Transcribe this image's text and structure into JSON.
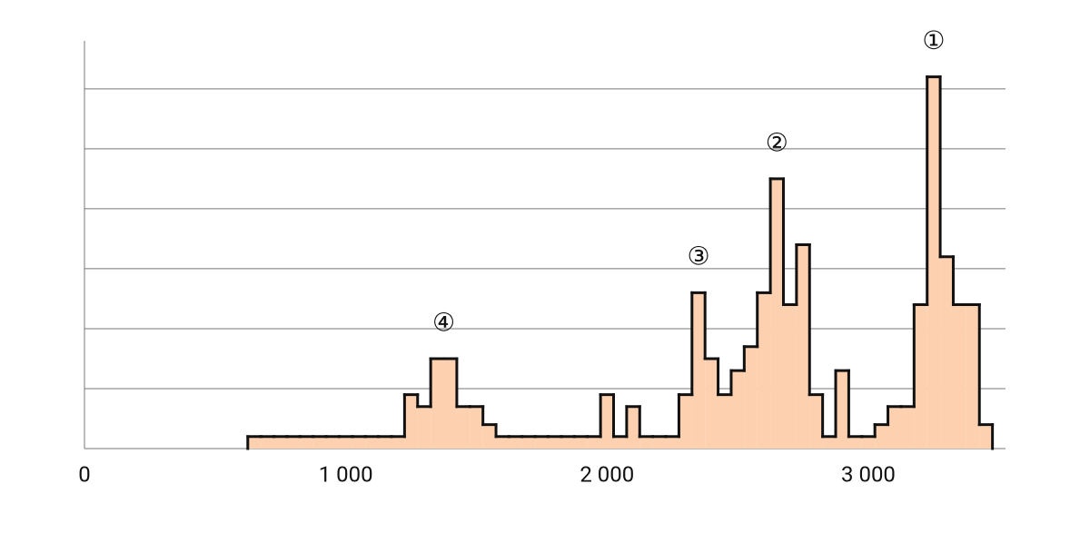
{
  "chart_data": {
    "type": "histogram",
    "bins": [
      625,
      675,
      725,
      775,
      825,
      875,
      925,
      975,
      1025,
      1075,
      1125,
      1175,
      1225,
      1275,
      1325,
      1375,
      1425,
      1475,
      1525,
      1575,
      1625,
      1675,
      1725,
      1775,
      1825,
      1875,
      1925,
      1975,
      2025,
      2075,
      2125,
      2175,
      2225,
      2275,
      2325,
      2375,
      2425,
      2475,
      2525,
      2575,
      2625,
      2675,
      2725,
      2775,
      2825,
      2875,
      2925,
      2975,
      3025,
      3075,
      3125,
      3175,
      3225,
      3275,
      3325,
      3375,
      3425,
      3475
    ],
    "counts": [
      2,
      2,
      2,
      2,
      2,
      2,
      2,
      2,
      2,
      2,
      2,
      2,
      9,
      7,
      15,
      15,
      7,
      7,
      4,
      2,
      2,
      2,
      2,
      2,
      2,
      2,
      2,
      9,
      2,
      7,
      2,
      2,
      2,
      9,
      26,
      15,
      9,
      13,
      17,
      26,
      45,
      24,
      34,
      9,
      2,
      13,
      2,
      2,
      4,
      7,
      7,
      24,
      62,
      32,
      24,
      24,
      4
    ],
    "color": "#fdd0b0",
    "edge_color": "#111111",
    "xlim": [
      0,
      3525
    ],
    "ylim": [
      0,
      68
    ],
    "xticks": [
      0,
      {
        "value": 1000,
        "label": "1 000"
      },
      {
        "value": 2000,
        "label": "2 000"
      },
      {
        "value": 3000,
        "label": "3 000"
      }
    ],
    "yticks": [
      10,
      20,
      30,
      40,
      50,
      60
    ],
    "grid": true,
    "annotations": [
      "①",
      "②",
      "③",
      "④"
    ]
  }
}
